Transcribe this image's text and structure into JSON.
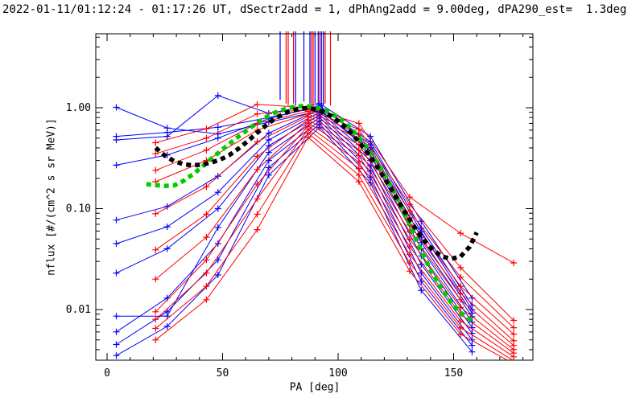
{
  "header": {
    "title": "2022-01-11/01:12:24 - 01:17:26 UT, dSectr2add = 1, dPhAng2add = 9.00deg, dPA290_est=  1.3deg"
  },
  "chart_data": {
    "type": "line",
    "title": "2022-01-11/01:12:24 - 01:17:26 UT, dSectr2add = 1, dPhAng2add = 9.00deg, dPA290_est=  1.3deg",
    "xlabel": "PA [deg]",
    "ylabel": "nflux [#/(cm^2 s sr MeV)]",
    "xlim": [
      -5,
      184
    ],
    "ylim": [
      0.00315,
      5.4
    ],
    "ylog": true,
    "grid": false,
    "legend": "none",
    "x_ticks_major": [
      0,
      50,
      100,
      150
    ],
    "x_tick_labels": [
      "0",
      "50",
      "100",
      "150"
    ],
    "x_minor_step": 10,
    "x_minor_range": [
      10,
      180
    ],
    "y_ticks_major": [
      1.0,
      0.1,
      0.01
    ],
    "y_tick_labels": [
      "1.00",
      "0.10",
      "0.01"
    ],
    "palette": {
      "red": "#ff0000",
      "blue": "#0000ff",
      "green": "#00cc00",
      "black": "#000000",
      "background": "#ffffff"
    },
    "series": [
      {
        "name": "sector-traces-blue",
        "color": "blue",
        "marker": "plus",
        "pa": [
          4,
          26,
          48,
          70,
          92,
          114,
          136,
          158
        ],
        "lines": [
          [
            1.01,
            0.63,
            0.55,
            0.72,
            0.93,
            0.4,
            0.052,
            0.0092
          ],
          [
            0.52,
            0.57,
            0.64,
            0.8,
            1.02,
            0.46,
            0.064,
            0.011
          ],
          [
            0.48,
            0.52,
            1.32,
            0.88,
            1.1,
            0.52,
            0.075,
            0.013
          ],
          [
            0.27,
            0.34,
            0.5,
            0.78,
            1.05,
            0.43,
            0.059,
            0.01
          ],
          [
            0.077,
            0.105,
            0.21,
            0.56,
            0.96,
            0.37,
            0.046,
            0.0085
          ],
          [
            0.045,
            0.066,
            0.145,
            0.48,
            0.9,
            0.34,
            0.04,
            0.0075
          ],
          [
            0.023,
            0.04,
            0.1,
            0.42,
            0.85,
            0.3,
            0.034,
            0.0066
          ],
          [
            0.0086,
            0.0086,
            0.065,
            0.36,
            0.8,
            0.265,
            0.028,
            0.0058
          ],
          [
            0.006,
            0.013,
            0.045,
            0.3,
            0.74,
            0.235,
            0.023,
            0.005
          ],
          [
            0.0045,
            0.0095,
            0.031,
            0.255,
            0.69,
            0.205,
            0.019,
            0.0044
          ],
          [
            0.0035,
            0.0068,
            0.022,
            0.215,
            0.64,
            0.18,
            0.0155,
            0.0038
          ]
        ]
      },
      {
        "name": "sector-traces-red",
        "color": "red",
        "marker": "plus",
        "pa": [
          21,
          43,
          65,
          87,
          109,
          131,
          153,
          176
        ],
        "lines": [
          [
            0.45,
            0.62,
            1.08,
            1.0,
            0.7,
            0.13,
            0.057,
            0.029
          ],
          [
            0.35,
            0.5,
            0.87,
            0.96,
            0.61,
            0.11,
            0.026,
            0.0078
          ],
          [
            0.24,
            0.38,
            0.7,
            0.92,
            0.55,
            0.094,
            0.021,
            0.0066
          ],
          [
            0.185,
            0.3,
            0.6,
            0.87,
            0.49,
            0.081,
            0.017,
            0.0057
          ],
          [
            0.089,
            0.165,
            0.46,
            0.82,
            0.43,
            0.069,
            0.0145,
            0.0049
          ],
          [
            0.039,
            0.088,
            0.33,
            0.76,
            0.38,
            0.059,
            0.0125,
            0.0044
          ],
          [
            0.02,
            0.052,
            0.245,
            0.71,
            0.335,
            0.05,
            0.0105,
            0.004
          ],
          [
            0.0095,
            0.031,
            0.175,
            0.66,
            0.29,
            0.042,
            0.009,
            0.0037
          ],
          [
            0.008,
            0.023,
            0.125,
            0.61,
            0.25,
            0.035,
            0.0077,
            0.0034
          ],
          [
            0.0065,
            0.017,
            0.088,
            0.56,
            0.215,
            0.029,
            0.0066,
            0.0031
          ],
          [
            0.005,
            0.0125,
            0.062,
            0.51,
            0.185,
            0.024,
            0.0057,
            0.0029
          ]
        ]
      },
      {
        "name": "green-fit-curve",
        "color": "green",
        "style": "thick-dashed",
        "points": [
          [
            17,
            0.175
          ],
          [
            21,
            0.171
          ],
          [
            25,
            0.168
          ],
          [
            29,
            0.17
          ],
          [
            33,
            0.188
          ],
          [
            37,
            0.218
          ],
          [
            41,
            0.258
          ],
          [
            45,
            0.31
          ],
          [
            49,
            0.37
          ],
          [
            53,
            0.44
          ],
          [
            57,
            0.52
          ],
          [
            61,
            0.61
          ],
          [
            65,
            0.71
          ],
          [
            69,
            0.81
          ],
          [
            73,
            0.9
          ],
          [
            77,
            0.97
          ],
          [
            81,
            1.02
          ],
          [
            85,
            1.04
          ],
          [
            89,
            1.03
          ],
          [
            93,
            0.97
          ],
          [
            97,
            0.88
          ],
          [
            101,
            0.77
          ],
          [
            105,
            0.64
          ],
          [
            109,
            0.51
          ],
          [
            113,
            0.39
          ],
          [
            117,
            0.285
          ],
          [
            121,
            0.2
          ],
          [
            125,
            0.135
          ],
          [
            129,
            0.088
          ],
          [
            133,
            0.054
          ],
          [
            137,
            0.034
          ],
          [
            141,
            0.0225
          ],
          [
            145,
            0.0157
          ],
          [
            149,
            0.0117
          ],
          [
            153,
            0.0093
          ],
          [
            157,
            0.008
          ],
          [
            159,
            0.0076
          ]
        ]
      },
      {
        "name": "black-model-curve",
        "color": "black",
        "style": "thick-dashed",
        "points": [
          [
            21,
            0.4
          ],
          [
            25,
            0.335
          ],
          [
            29,
            0.296
          ],
          [
            33,
            0.276
          ],
          [
            37,
            0.269
          ],
          [
            41,
            0.273
          ],
          [
            45,
            0.285
          ],
          [
            49,
            0.306
          ],
          [
            53,
            0.34
          ],
          [
            57,
            0.395
          ],
          [
            61,
            0.47
          ],
          [
            65,
            0.565
          ],
          [
            69,
            0.675
          ],
          [
            73,
            0.79
          ],
          [
            77,
            0.885
          ],
          [
            81,
            0.95
          ],
          [
            85,
            0.985
          ],
          [
            89,
            0.975
          ],
          [
            93,
            0.92
          ],
          [
            97,
            0.83
          ],
          [
            101,
            0.71
          ],
          [
            105,
            0.585
          ],
          [
            109,
            0.46
          ],
          [
            113,
            0.35
          ],
          [
            117,
            0.258
          ],
          [
            121,
            0.185
          ],
          [
            125,
            0.131
          ],
          [
            129,
            0.092
          ],
          [
            133,
            0.066
          ],
          [
            137,
            0.049
          ],
          [
            141,
            0.039
          ],
          [
            145,
            0.0335
          ],
          [
            149,
            0.0318
          ],
          [
            153,
            0.0335
          ],
          [
            157,
            0.042
          ],
          [
            160,
            0.058
          ]
        ]
      }
    ],
    "offscale_spikes": [
      {
        "pa": 74.9,
        "color": "blue",
        "v_bottom": 1.2
      },
      {
        "pa": 77.5,
        "color": "red",
        "v_bottom": 1.1
      },
      {
        "pa": 78.4,
        "color": "red",
        "v_bottom": 1.05
      },
      {
        "pa": 80.7,
        "color": "red",
        "v_bottom": 1.1
      },
      {
        "pa": 81.6,
        "color": "blue",
        "v_bottom": 1.05
      },
      {
        "pa": 85.2,
        "color": "blue",
        "v_bottom": 1.15
      },
      {
        "pa": 87.8,
        "color": "blue",
        "v_bottom": 1.1
      },
      {
        "pa": 88.5,
        "color": "red",
        "v_bottom": 1.05
      },
      {
        "pa": 89.2,
        "color": "red",
        "v_bottom": 1.0
      },
      {
        "pa": 90.0,
        "color": "blue",
        "v_bottom": 1.1
      },
      {
        "pa": 91.4,
        "color": "blue",
        "v_bottom": 1.05
      },
      {
        "pa": 92.1,
        "color": "red",
        "v_bottom": 1.1
      },
      {
        "pa": 92.8,
        "color": "blue",
        "v_bottom": 1.0
      },
      {
        "pa": 93.6,
        "color": "blue",
        "v_bottom": 1.05
      },
      {
        "pa": 94.4,
        "color": "red",
        "v_bottom": 1.1
      },
      {
        "pa": 96.7,
        "color": "red",
        "v_bottom": 1.05
      }
    ]
  }
}
